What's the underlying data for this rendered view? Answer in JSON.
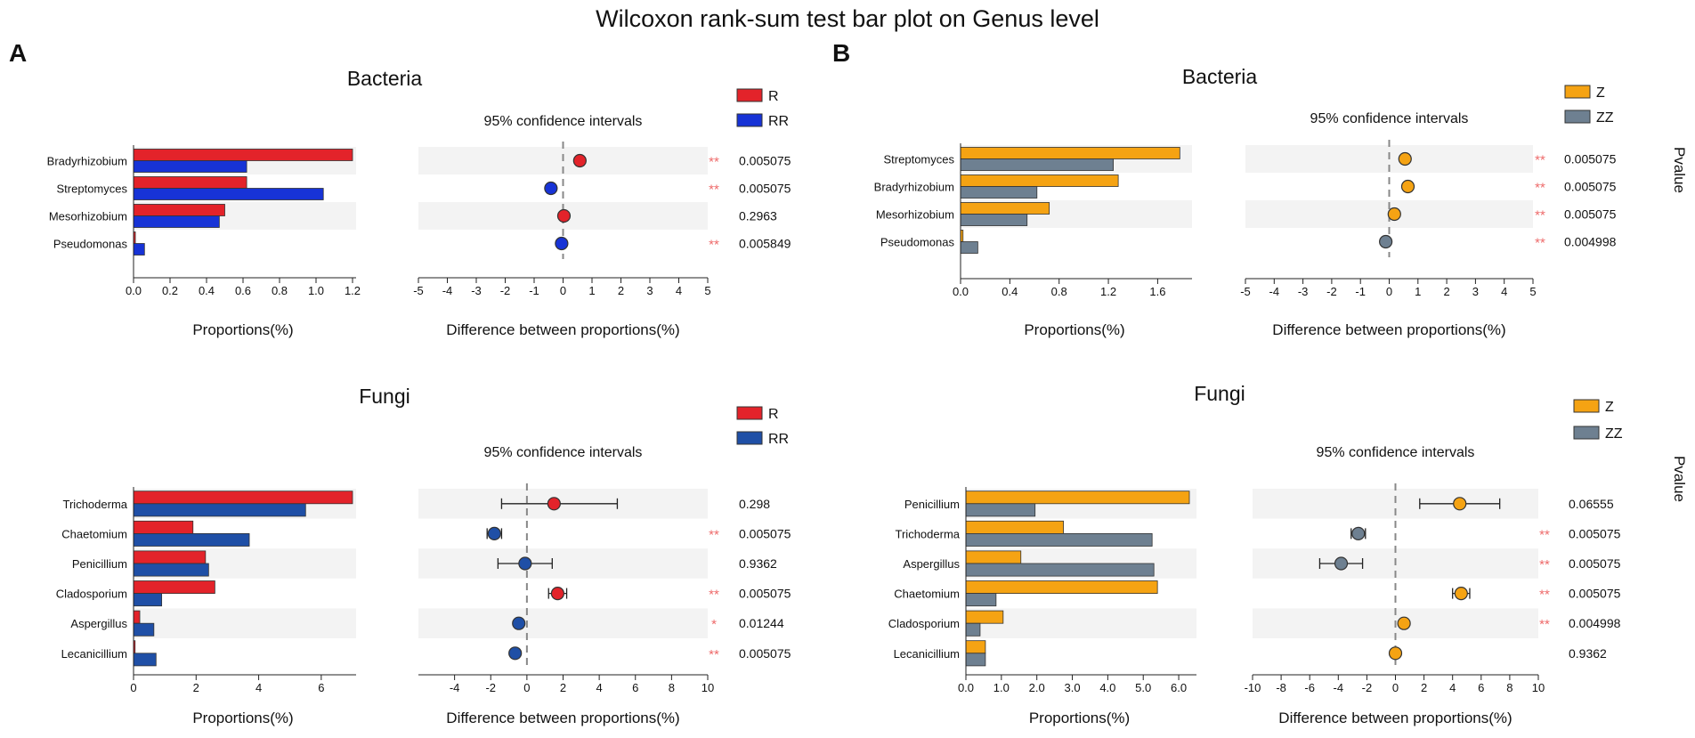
{
  "title": "Wilcoxon rank-sum test bar plot on Genus level",
  "pvalue_label": "Pvalue",
  "chart_data": [
    {
      "id": "A-bacteria",
      "panel": "A",
      "type": "bar",
      "title": "Bacteria",
      "ci_title": "95% confidence intervals",
      "xlabel": "Proportions(%)",
      "diff_xlabel": "Difference between proportions(%)",
      "categories": [
        "Bradyrhizobium",
        "Streptomyces",
        "Mesorhizobium",
        "Pseudomonas"
      ],
      "series": [
        {
          "name": "R",
          "color": "#e3232a",
          "values": [
            1.2,
            0.62,
            0.5,
            0.01
          ]
        },
        {
          "name": "RR",
          "color": "#1733d6",
          "values": [
            0.62,
            1.04,
            0.47,
            0.06
          ]
        }
      ],
      "xlim": [
        0,
        1.2
      ],
      "xticks": [
        "0.0",
        "0.2",
        "0.4",
        "0.6",
        "0.8",
        "1.0",
        "1.2"
      ],
      "diff": {
        "estimate": [
          0.58,
          -0.42,
          0.03,
          -0.05
        ],
        "ci_low": [
          0.45,
          -0.55,
          -0.08,
          -0.16
        ],
        "ci_high": [
          0.71,
          -0.29,
          0.14,
          0.06
        ],
        "color_series": [
          "R",
          "RR",
          "R",
          "RR"
        ],
        "xlim": [
          -5,
          5
        ],
        "xticks": [
          "-5",
          "-4",
          "-3",
          "-2",
          "-1",
          "0",
          "1",
          "2",
          "3",
          "4",
          "5"
        ]
      },
      "significance": [
        "**",
        "**",
        "",
        "**"
      ],
      "pvalues": [
        "0.005075",
        "0.005075",
        "0.2963",
        "0.005849"
      ]
    },
    {
      "id": "A-fungi",
      "panel": "A",
      "type": "bar",
      "title": "Fungi",
      "ci_title": "95% confidence intervals",
      "xlabel": "Proportions(%)",
      "diff_xlabel": "Difference between proportions(%)",
      "categories": [
        "Trichoderma",
        "Chaetomium",
        "Penicillium",
        "Cladosporium",
        "Aspergillus",
        "Lecanicillium"
      ],
      "series": [
        {
          "name": "R",
          "color": "#e3232a",
          "values": [
            7.0,
            1.9,
            2.3,
            2.6,
            0.2,
            0.05
          ]
        },
        {
          "name": "RR",
          "color": "#1f4fa6",
          "values": [
            5.5,
            3.7,
            2.4,
            0.9,
            0.65,
            0.72
          ]
        }
      ],
      "xlim": [
        0,
        7
      ],
      "xticks": [
        "0",
        "2",
        "4",
        "6"
      ],
      "diff": {
        "estimate": [
          1.5,
          -1.8,
          -0.1,
          1.7,
          -0.45,
          -0.65
        ],
        "ci_low": [
          -1.4,
          -2.2,
          -1.6,
          1.2,
          -0.65,
          -0.85
        ],
        "ci_high": [
          5.0,
          -1.4,
          1.4,
          2.2,
          -0.25,
          -0.45
        ],
        "color_series": [
          "R",
          "RR",
          "RR",
          "R",
          "RR",
          "RR"
        ],
        "xlim": [
          -6,
          10
        ],
        "xticks": [
          "-4",
          "-2",
          "0",
          "2",
          "4",
          "6",
          "8",
          "10"
        ]
      },
      "significance": [
        "",
        "**",
        "",
        "**",
        "*",
        "**"
      ],
      "pvalues": [
        "0.298",
        "0.005075",
        "0.9362",
        "0.005075",
        "0.01244",
        "0.005075"
      ]
    },
    {
      "id": "B-bacteria",
      "panel": "B",
      "type": "bar",
      "title": "Bacteria",
      "ci_title": "95% confidence intervals",
      "xlabel": "Proportions(%)",
      "diff_xlabel": "Difference between proportions(%)",
      "categories": [
        "Streptomyces",
        "Bradyrhizobium",
        "Mesorhizobium",
        "Pseudomonas"
      ],
      "series": [
        {
          "name": "Z",
          "color": "#f5a313",
          "values": [
            1.78,
            1.28,
            0.72,
            0.02
          ]
        },
        {
          "name": "ZZ",
          "color": "#6e8091",
          "values": [
            1.24,
            0.62,
            0.54,
            0.14
          ]
        }
      ],
      "xlim": [
        0,
        1.85
      ],
      "xticks": [
        "0.0",
        "0.4",
        "0.8",
        "1.2",
        "1.6"
      ],
      "diff": {
        "estimate": [
          0.55,
          0.65,
          0.18,
          -0.12
        ],
        "ci_low": [
          0.42,
          0.52,
          0.05,
          -0.25
        ],
        "ci_high": [
          0.68,
          0.78,
          0.31,
          0.01
        ],
        "color_series": [
          "Z",
          "Z",
          "Z",
          "ZZ"
        ],
        "xlim": [
          -5,
          5
        ],
        "xticks": [
          "-5",
          "-4",
          "-3",
          "-2",
          "-1",
          "0",
          "1",
          "2",
          "3",
          "4",
          "5"
        ]
      },
      "significance": [
        "**",
        "**",
        "**",
        "**"
      ],
      "pvalues": [
        "0.005075",
        "0.005075",
        "0.005075",
        "0.004998"
      ]
    },
    {
      "id": "B-fungi",
      "panel": "B",
      "type": "bar",
      "title": "Fungi",
      "ci_title": "95% confidence intervals",
      "xlabel": "Proportions(%)",
      "diff_xlabel": "Difference between proportions(%)",
      "categories": [
        "Penicillium",
        "Trichoderma",
        "Aspergillus",
        "Chaetomium",
        "Cladosporium",
        "Lecanicillium"
      ],
      "series": [
        {
          "name": "Z",
          "color": "#f5a313",
          "values": [
            6.3,
            2.75,
            1.55,
            5.4,
            1.05,
            0.55
          ]
        },
        {
          "name": "ZZ",
          "color": "#6e8091",
          "values": [
            1.95,
            5.25,
            5.3,
            0.85,
            0.4,
            0.55
          ]
        }
      ],
      "xlim": [
        0,
        6.4
      ],
      "xticks": [
        "0.0",
        "1.0",
        "2.0",
        "3.0",
        "4.0",
        "5.0",
        "6.0"
      ],
      "diff": {
        "estimate": [
          4.5,
          -2.6,
          -3.8,
          4.6,
          0.6,
          0.0
        ],
        "ci_low": [
          1.7,
          -3.1,
          -5.3,
          4.0,
          0.35,
          -0.2
        ],
        "ci_high": [
          7.3,
          -2.1,
          -2.3,
          5.2,
          0.85,
          0.2
        ],
        "color_series": [
          "Z",
          "ZZ",
          "ZZ",
          "Z",
          "Z",
          "Z"
        ],
        "xlim": [
          -10,
          10
        ],
        "xticks": [
          "-10",
          "-8",
          "-6",
          "-4",
          "-2",
          "0",
          "2",
          "4",
          "6",
          "8",
          "10"
        ]
      },
      "significance": [
        "",
        "**",
        "**",
        "**",
        "**",
        ""
      ],
      "pvalues": [
        "0.06555",
        "0.005075",
        "0.005075",
        "0.005075",
        "0.004998",
        "0.9362"
      ]
    }
  ]
}
